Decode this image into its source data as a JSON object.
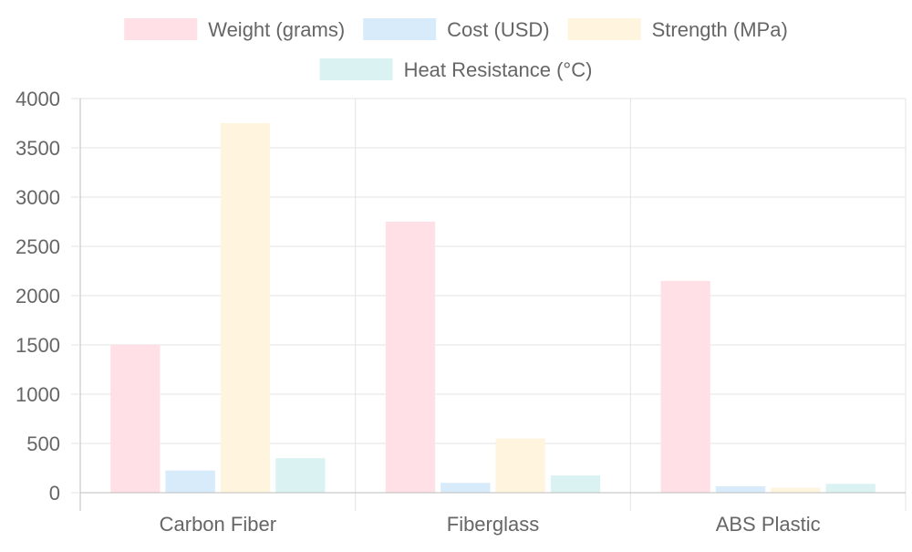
{
  "chart_data": {
    "type": "bar",
    "categories": [
      "Carbon Fiber",
      "Fiberglass",
      "ABS Plastic"
    ],
    "series": [
      {
        "name": "Weight (grams)",
        "values": [
          1500,
          2750,
          2150
        ],
        "fill": "#ffe0e6",
        "stroke": "#ffb3c1"
      },
      {
        "name": "Cost (USD)",
        "values": [
          225,
          100,
          65
        ],
        "fill": "#d7ebfa",
        "stroke": "#a8d2f4"
      },
      {
        "name": "Strength (MPa)",
        "values": [
          3750,
          550,
          50
        ],
        "fill": "#fff4de",
        "stroke": "#ffe0a8"
      },
      {
        "name": "Heat Resistance (°C)",
        "values": [
          350,
          175,
          90
        ],
        "fill": "#dbf2f2",
        "stroke": "#b0e3e3"
      }
    ],
    "y_ticks": [
      "0",
      "500",
      "1000",
      "1500",
      "2000",
      "2500",
      "3000",
      "3500",
      "4000"
    ],
    "ylim": [
      0,
      4000
    ],
    "grid": true,
    "legend_position": "top"
  }
}
